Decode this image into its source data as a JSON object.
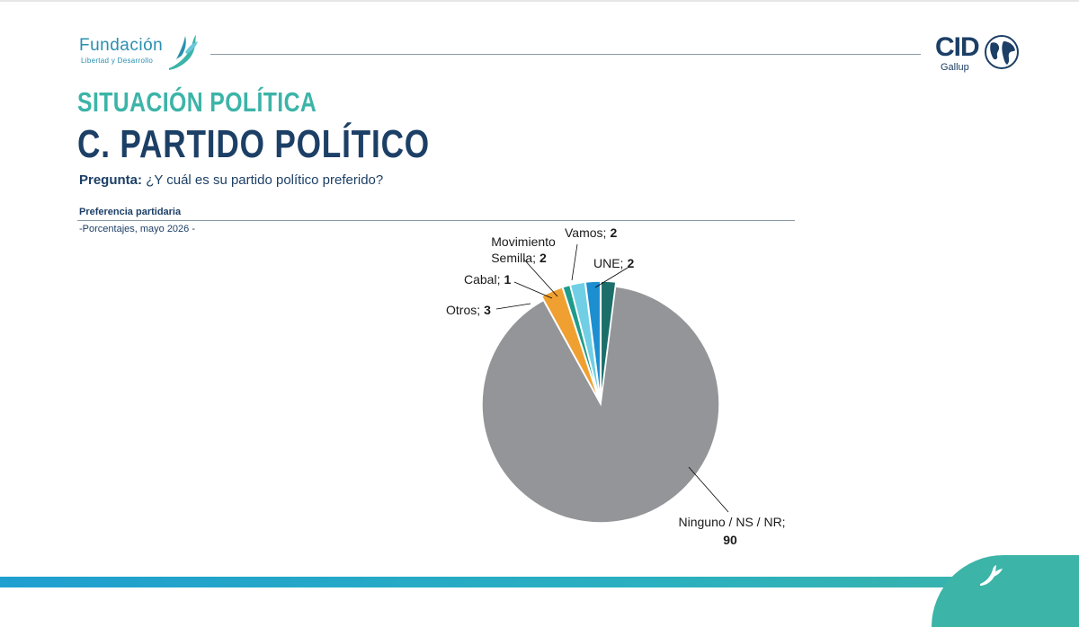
{
  "header": {
    "org_logo": {
      "line1": "Fundación",
      "line2": "Libertad y Desarrollo"
    },
    "partner_logo": {
      "name": "CID",
      "sub": "Gallup"
    }
  },
  "section_title": "SITUACIÓN POLÍTICA",
  "page_title": "C. PARTIDO POLÍTICO",
  "question": {
    "label": "Pregunta:",
    "text": "¿Y cuál es su partido político preferido?"
  },
  "chart_heading": "Preferencia partidaria",
  "chart_subheading": "-Porcentajes, mayo 2026 -",
  "chart_data": {
    "type": "pie",
    "slices": [
      {
        "label": "UNE",
        "value": 2,
        "color": "#1b6e6a"
      },
      {
        "label": "Ninguno / NS / NR",
        "value": 90,
        "color": "#939598"
      },
      {
        "label": "Otros",
        "value": 3,
        "color": "#f0a030"
      },
      {
        "label": "Cabal",
        "value": 1,
        "color": "#1e9b8a"
      },
      {
        "label": "Movimiento Semilla",
        "value": 2,
        "color": "#70cfe4"
      },
      {
        "label": "Vamos",
        "value": 2,
        "color": "#1c8fd0"
      }
    ],
    "data_labels": [
      {
        "name": "Vamos;",
        "value": "2"
      },
      {
        "name": "UNE;",
        "value": "2"
      },
      {
        "name": "Movimiento",
        "name2": "Semilla;",
        "value": "2"
      },
      {
        "name": "Cabal;",
        "value": "1"
      },
      {
        "name": "Otros;",
        "value": "3"
      },
      {
        "name": "Ninguno / NS / NR;",
        "value": "90"
      }
    ],
    "exploded": "Ninguno / NS / NR"
  },
  "colors": {
    "teal": "#3cb4a8",
    "navy": "#1c3f66",
    "blue": "#2a8fb0"
  }
}
